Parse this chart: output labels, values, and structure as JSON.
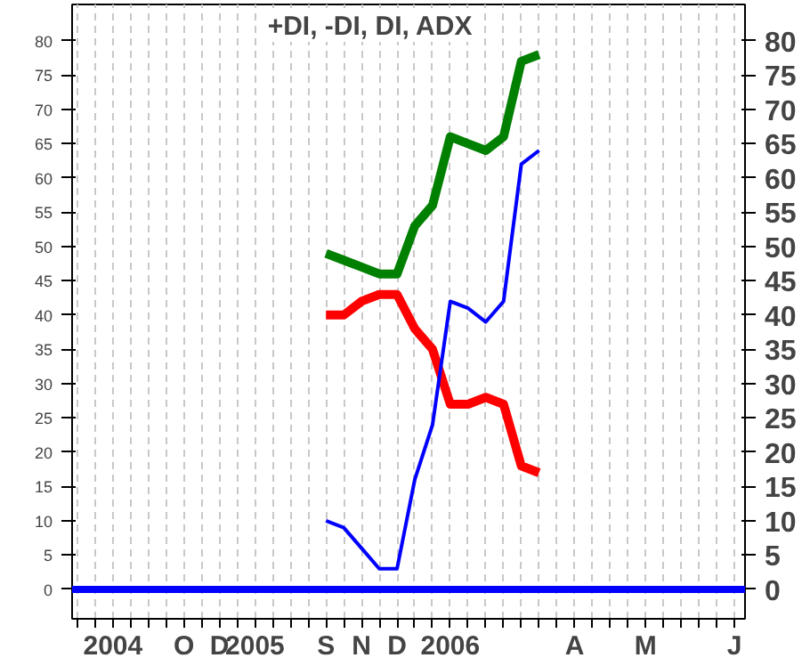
{
  "chart_data": {
    "type": "line",
    "title": "+DI, -DI, DI, ADX",
    "categories": [
      null,
      null,
      "2004",
      null,
      null,
      null,
      "O",
      null,
      "D",
      null,
      "2005",
      null,
      null,
      null,
      "S",
      null,
      "N",
      null,
      "D",
      null,
      null,
      "2006",
      null,
      null,
      null,
      null,
      null,
      null,
      "A",
      null,
      null,
      null,
      "M",
      null,
      null,
      null,
      null,
      "J"
    ],
    "series": [
      {
        "color": "#008000",
        "values": [
          null,
          null,
          null,
          null,
          null,
          null,
          null,
          null,
          null,
          null,
          null,
          null,
          null,
          null,
          49,
          48,
          47,
          46,
          46,
          53,
          56,
          66,
          65,
          64,
          66,
          77,
          78,
          null,
          null,
          null,
          null,
          null,
          null,
          null,
          null,
          null,
          null,
          null
        ]
      },
      {
        "color": "#ff0000",
        "values": [
          null,
          null,
          null,
          null,
          null,
          null,
          null,
          null,
          null,
          null,
          null,
          null,
          null,
          null,
          40,
          40,
          42,
          43,
          43,
          38,
          35,
          27,
          27,
          28,
          27,
          18,
          17,
          null,
          null,
          null,
          null,
          null,
          null,
          null,
          null,
          null,
          null,
          null
        ]
      },
      {
        "color": "#0000ff",
        "values": [
          null,
          null,
          null,
          null,
          null,
          null,
          null,
          null,
          null,
          null,
          null,
          null,
          null,
          null,
          10,
          9,
          6,
          3,
          3,
          16,
          24,
          42,
          41,
          39,
          42,
          62,
          64,
          null,
          null,
          null,
          null,
          null,
          null,
          null,
          null,
          null,
          null,
          null
        ]
      }
    ],
    "ylim": [
      -4.3,
      85.3
    ],
    "yticks": [
      0,
      5,
      10,
      15,
      20,
      25,
      30,
      35,
      40,
      45,
      50,
      55,
      60,
      65,
      70,
      75,
      80
    ],
    "y2lim": [
      -4.3,
      85.3
    ],
    "y2ticks": [
      0,
      5,
      10,
      15,
      20,
      25,
      30,
      35,
      40,
      45,
      50,
      55,
      60,
      65,
      70,
      75,
      80
    ],
    "ref_lines": [
      {
        "axis": "y",
        "value": 0,
        "color": "#0000ff"
      }
    ],
    "grid": "x",
    "marker": "none",
    "line_style": "solid"
  }
}
